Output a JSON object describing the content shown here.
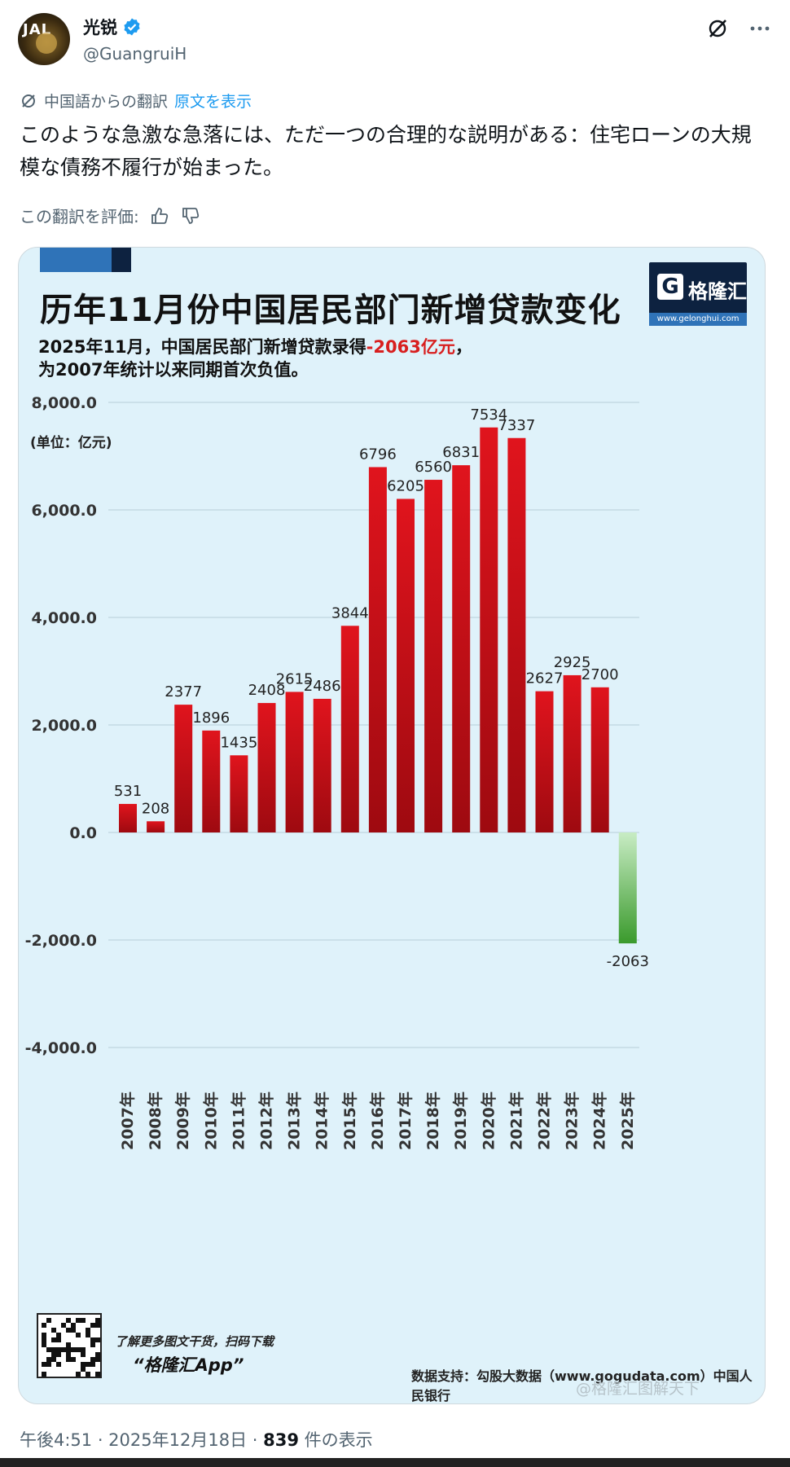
{
  "header": {
    "display_name": "光锐",
    "handle": "@GuangruiH",
    "verified": true,
    "icons": [
      "grok-icon",
      "more-icon"
    ]
  },
  "translation": {
    "notice": "中国語からの翻訳",
    "show_original": "原文を表示",
    "text": "このような急激な急落には、ただ一つの合理的な説明がある：住宅ローンの大規模な債務不履行が始まった。",
    "rate_label": "この翻訳を評価:"
  },
  "image": {
    "title": "历年11月份中国居民部门新增贷款变化",
    "logo_text": "格隆汇",
    "logo_url": "www.gelonghui.com",
    "subtitle_line1_prefix": "2025年11月，中国居民部门新增贷款录得",
    "subtitle_line1_highlight": "-2063亿元",
    "subtitle_line1_suffix": "，",
    "subtitle_line2": "为2007年统计以来同期首次负值。",
    "unit_label": "(单位：亿元)",
    "promo_line1": "了解更多图文干货，扫码下载",
    "promo_line2": "“格隆汇App”",
    "source": "数据支持：勾股大数据（www.gogudata.com）中国人民银行",
    "watermark": "@格隆汇图解天下",
    "colors": {
      "positive_bar": "#c8101a",
      "negative_bar": "#3f9a2f",
      "background": "#dff2fa"
    }
  },
  "chart_data": {
    "type": "bar",
    "title": "历年11月份中国居民部门新增贷款变化",
    "ylabel": "(单位：亿元)",
    "xlabel": "",
    "ylim": [
      -4000,
      8000
    ],
    "yticks": [
      "8,000.0",
      "6,000.0",
      "4,000.0",
      "2,000.0",
      "0.0",
      "-2,000.0",
      "-4,000.0"
    ],
    "ytick_values": [
      8000,
      6000,
      4000,
      2000,
      0,
      -2000,
      -4000
    ],
    "grid": true,
    "categories": [
      "2007年",
      "2008年",
      "2009年",
      "2010年",
      "2011年",
      "2012年",
      "2013年",
      "2014年",
      "2015年",
      "2016年",
      "2017年",
      "2018年",
      "2019年",
      "2020年",
      "2021年",
      "2022年",
      "2023年",
      "2024年",
      "2025年"
    ],
    "values": [
      531,
      208,
      2377,
      1896,
      1435,
      2408,
      2615,
      2486,
      3844,
      6796,
      6205,
      6560,
      6831,
      7534,
      7337,
      2627,
      2925,
      2700,
      -2063
    ],
    "data_labels": [
      "531",
      "208",
      "2377",
      "1896",
      "1435",
      "2408",
      "2615",
      "2486",
      "3844",
      "6796",
      "6205",
      "6560",
      "6831",
      "7534",
      "7337",
      "2627",
      "2925",
      "2700",
      "-2063"
    ]
  },
  "meta": {
    "time": "午後4:51 · 2025年12月18日 · ",
    "views": "839",
    "views_suffix": " 件の表示"
  }
}
